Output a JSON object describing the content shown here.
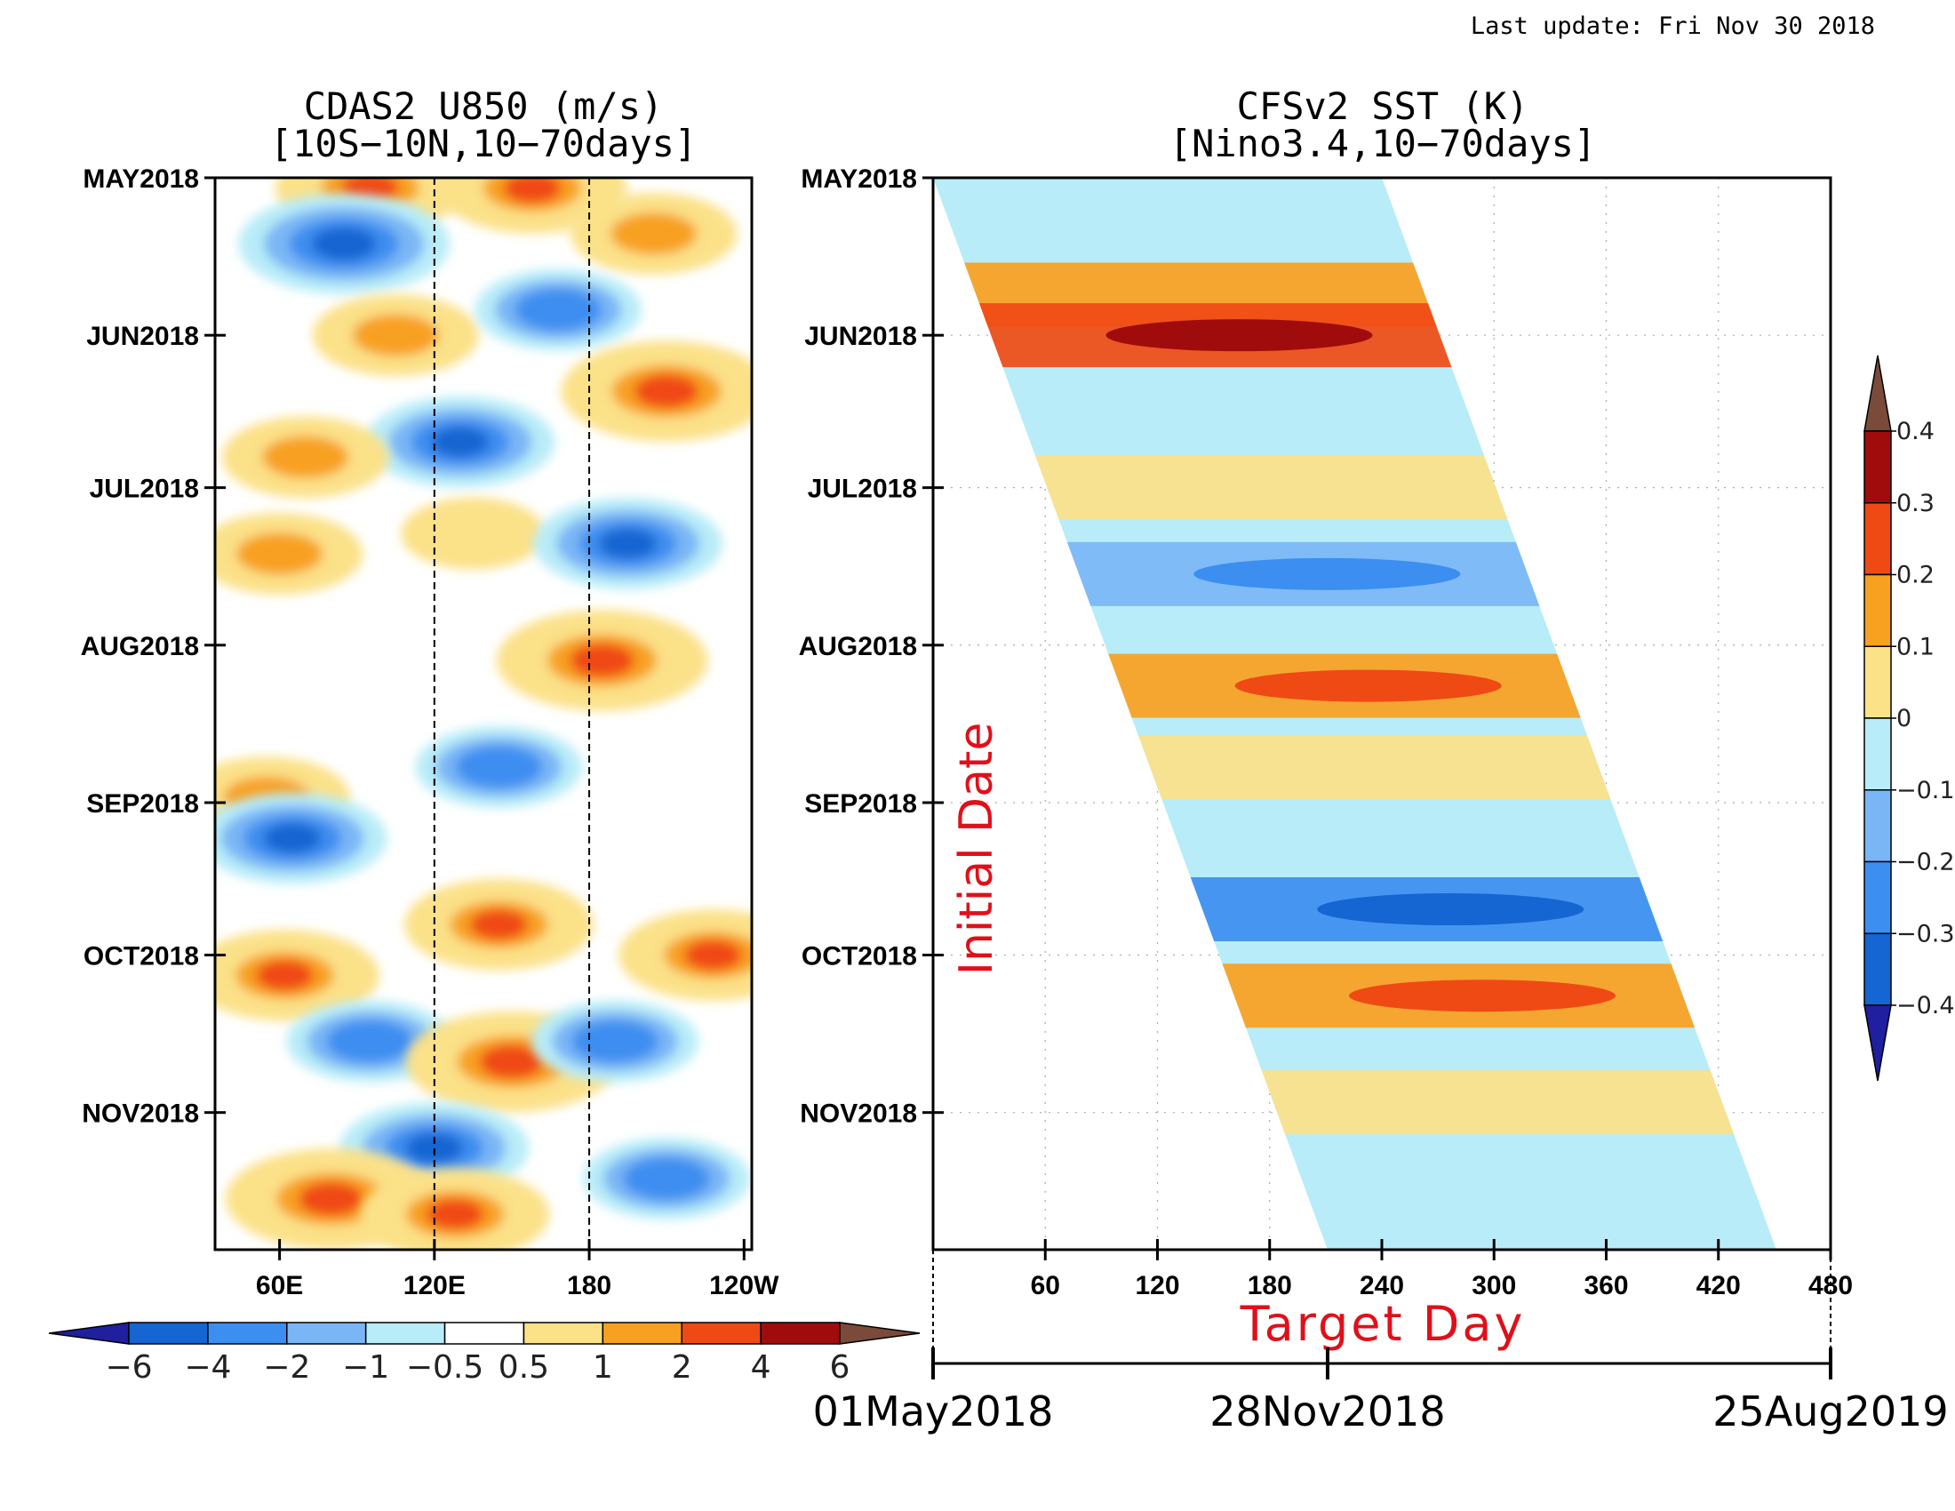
{
  "header": {
    "last_update": "Last update: Fri Nov 30 2018"
  },
  "chart_data": [
    {
      "type": "heatmap",
      "title": "CDAS2 U850 (m/s)",
      "subtitle": "[10S−10N,10−70days]",
      "x_tick_labels": [
        "60E",
        "120E",
        "180",
        "120W"
      ],
      "x_ticks_deg": [
        60,
        120,
        180,
        240
      ],
      "x_range_deg": [
        35,
        243
      ],
      "y_tick_labels": [
        "MAY2018",
        "JUN2018",
        "JUL2018",
        "AUG2018",
        "SEP2018",
        "OCT2018",
        "NOV2018"
      ],
      "y_range": [
        "2018-05-01",
        "2018-11-28"
      ],
      "reference_lines_deg": [
        120,
        180
      ],
      "colorbar": {
        "levels": [
          "−6",
          "−4",
          "−2",
          "−1",
          "−0.5",
          "0.5",
          "1",
          "2",
          "4",
          "6"
        ],
        "colors": [
          "#1f1f9f",
          "#1565d2",
          "#3c8ef0",
          "#7ab6f5",
          "#b8ecf8",
          "#ffffff",
          "#fbe188",
          "#f8a020",
          "#f04a14",
          "#a00c0c",
          "#7a4a3a"
        ]
      },
      "anomaly_bands": [
        {
          "date": "2018-05-03",
          "lon": 95,
          "value": 3
        },
        {
          "date": "2018-05-03",
          "lon": 158,
          "value": 3
        },
        {
          "date": "2018-05-14",
          "lon": 85,
          "value": -4
        },
        {
          "date": "2018-05-12",
          "lon": 205,
          "value": 2
        },
        {
          "date": "2018-06-01",
          "lon": 105,
          "value": 2
        },
        {
          "date": "2018-05-27",
          "lon": 168,
          "value": -2
        },
        {
          "date": "2018-06-12",
          "lon": 210,
          "value": 4
        },
        {
          "date": "2018-06-22",
          "lon": 130,
          "value": -3
        },
        {
          "date": "2018-06-25",
          "lon": 70,
          "value": 2
        },
        {
          "date": "2018-07-14",
          "lon": 60,
          "value": 2
        },
        {
          "date": "2018-07-10",
          "lon": 135,
          "value": 1
        },
        {
          "date": "2018-07-12",
          "lon": 195,
          "value": -3
        },
        {
          "date": "2018-08-04",
          "lon": 185,
          "value": 4
        },
        {
          "date": "2018-08-25",
          "lon": 145,
          "value": -2
        },
        {
          "date": "2018-08-31",
          "lon": 55,
          "value": 2
        },
        {
          "date": "2018-09-08",
          "lon": 65,
          "value": -3
        },
        {
          "date": "2018-09-25",
          "lon": 145,
          "value": 3
        },
        {
          "date": "2018-10-01",
          "lon": 228,
          "value": 3
        },
        {
          "date": "2018-10-05",
          "lon": 62,
          "value": 3
        },
        {
          "date": "2018-10-18",
          "lon": 95,
          "value": -2
        },
        {
          "date": "2018-10-22",
          "lon": 150,
          "value": 4
        },
        {
          "date": "2018-10-18",
          "lon": 190,
          "value": -2
        },
        {
          "date": "2018-11-08",
          "lon": 120,
          "value": -3
        },
        {
          "date": "2018-11-18",
          "lon": 80,
          "value": 4
        },
        {
          "date": "2018-11-21",
          "lon": 128,
          "value": 3
        },
        {
          "date": "2018-11-14",
          "lon": 210,
          "value": -2
        }
      ]
    },
    {
      "type": "heatmap",
      "title": "CFSv2 SST (K)",
      "subtitle": "[Nino3.4,10−70days]",
      "xlabel": "Target Day",
      "ylabel": "Initial Date",
      "x_ticks": [
        60,
        120,
        180,
        240,
        300,
        360,
        420,
        480
      ],
      "x_range": [
        0,
        480
      ],
      "y_tick_labels": [
        "MAY2018",
        "JUN2018",
        "JUL2018",
        "AUG2018",
        "SEP2018",
        "OCT2018",
        "NOV2018"
      ],
      "y_range": [
        "2018-05-01",
        "2018-11-28"
      ],
      "forecast_window_days": [
        0,
        240
      ],
      "date_axis": {
        "labels": [
          "01May2018",
          "28Nov2018",
          "25Aug2019"
        ],
        "values_day": [
          0,
          211,
          480
        ]
      },
      "colorbar": {
        "levels": [
          "0.4",
          "0.3",
          "0.2",
          "0.1",
          "0",
          "−0.1",
          "−0.2",
          "−0.3",
          "−0.4"
        ],
        "colors": [
          "#7a4a3a",
          "#a00c0c",
          "#f04a14",
          "#f8a020",
          "#fbe188",
          "#b8ecf8",
          "#7ab6f5",
          "#3c8ef0",
          "#1565d2",
          "#1f1f9f"
        ]
      },
      "anomaly_bands": [
        {
          "date": "2018-05-08",
          "value": -0.1
        },
        {
          "date": "2018-05-24",
          "value": 0.1
        },
        {
          "date": "2018-06-01",
          "value": 0.2
        },
        {
          "date": "2018-06-18",
          "value": -0.1
        },
        {
          "date": "2018-07-01",
          "value": 0.05
        },
        {
          "date": "2018-07-18",
          "value": -0.15
        },
        {
          "date": "2018-08-09",
          "value": 0.15
        },
        {
          "date": "2018-08-25",
          "value": 0.05
        },
        {
          "date": "2018-09-22",
          "value": -0.25
        },
        {
          "date": "2018-10-09",
          "value": 0.15
        },
        {
          "date": "2018-10-30",
          "value": 0.05
        },
        {
          "date": "2018-11-18",
          "value": -0.1
        }
      ]
    }
  ]
}
